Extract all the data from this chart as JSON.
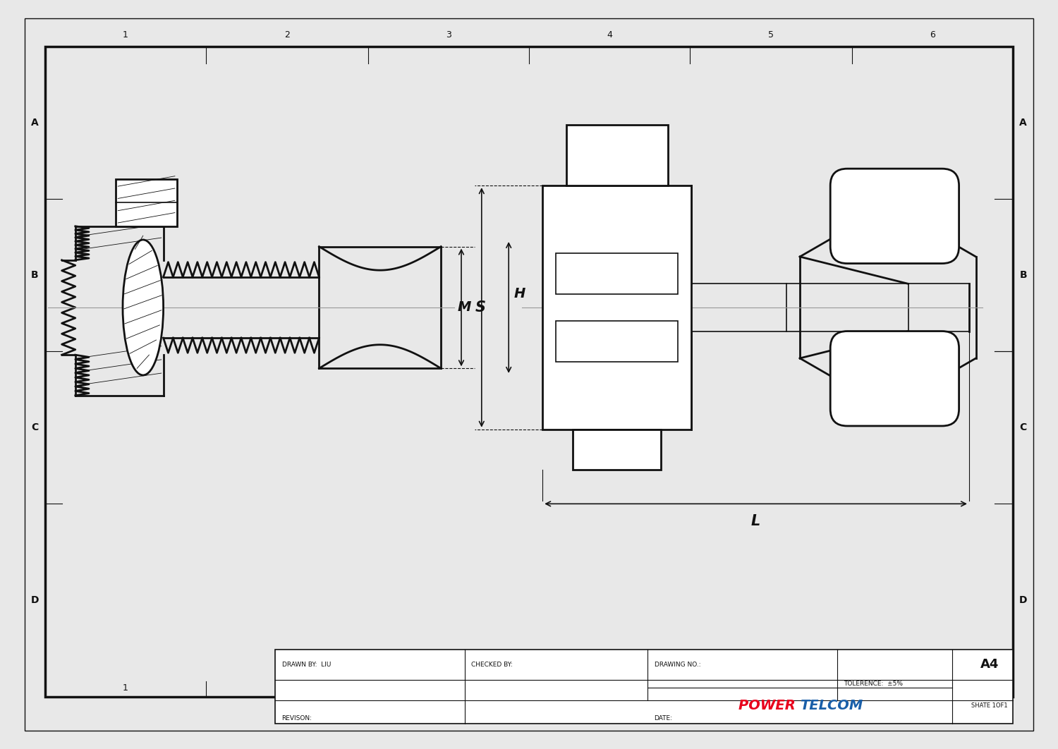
{
  "bg_color": "#e8e8e8",
  "paper_color": "#ffffff",
  "line_color": "#111111",
  "gray_line": "#999999",
  "power_red": "#e8001c",
  "power_blue": "#1a5fa8",
  "title_drawn": "DRAWN BY:  LIU",
  "title_checked": "CHECKED BY:",
  "title_drawing": "DRAWING NO.:",
  "title_tolerance": "TOLERENCE:  ±5%",
  "title_sheet": "SHATE 1OF1",
  "title_paper": "A4",
  "title_revison": "REVISON:",
  "title_date": "DATE:",
  "grid_cols": [
    "1",
    "2",
    "3",
    "4",
    "5",
    "6"
  ],
  "grid_rows": [
    "A",
    "B",
    "C",
    "D"
  ]
}
